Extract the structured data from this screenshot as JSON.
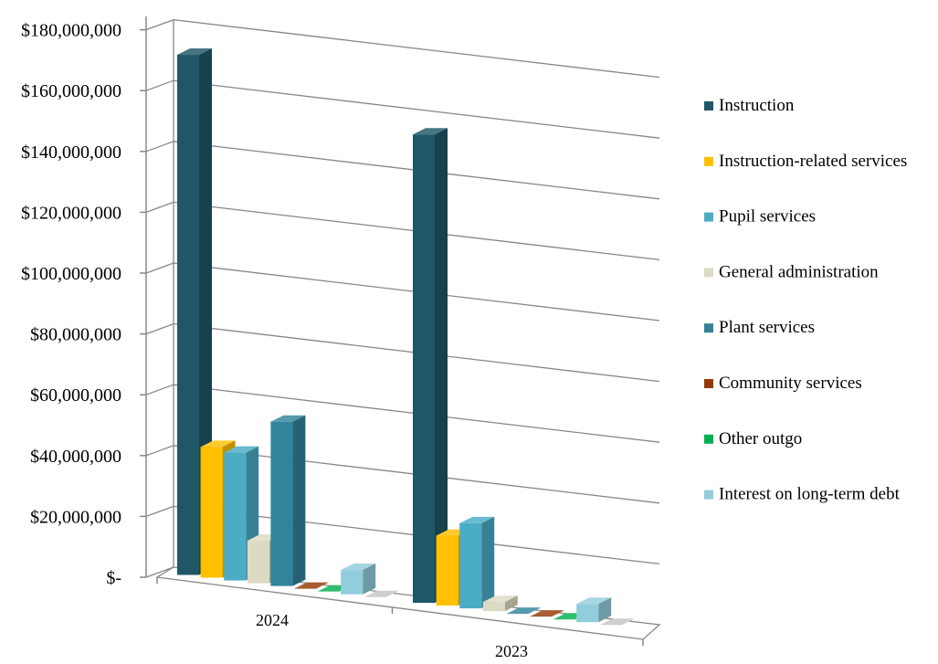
{
  "chart_data": {
    "type": "bar",
    "categories": [
      "2024",
      "2023"
    ],
    "series": [
      {
        "name": "Instruction",
        "values": [
          171000000,
          154000000
        ]
      },
      {
        "name": "Instruction-related services",
        "values": [
          43000000,
          23000000
        ]
      },
      {
        "name": "Pupil services",
        "values": [
          42000000,
          28000000
        ]
      },
      {
        "name": "General administration",
        "values": [
          14000000,
          3000000
        ]
      },
      {
        "name": "Plant services",
        "values": [
          54000000,
          0
        ]
      },
      {
        "name": "Community services",
        "values": [
          0,
          0
        ]
      },
      {
        "name": "Other outgo",
        "values": [
          0,
          0
        ]
      },
      {
        "name": "Interest on long-term debt",
        "values": [
          8000000,
          6000000
        ]
      },
      {
        "name": "",
        "values": [
          0,
          0
        ]
      }
    ],
    "colors": [
      "#1f5767",
      "#ffc000",
      "#4bacc6",
      "#dddac4",
      "#31849b",
      "#953905",
      "#00b050",
      "#92cddc",
      "#c4c4c4"
    ],
    "y_tick_values": [
      0,
      20000000,
      40000000,
      60000000,
      80000000,
      100000000,
      120000000,
      140000000,
      160000000,
      180000000
    ],
    "y_tick_labels": [
      "$-",
      "$20,000,000",
      "$40,000,000",
      "$60,000,000",
      "$80,000,000",
      "$100,000,000",
      "$120,000,000",
      "$140,000,000",
      "$160,000,000",
      "$180,000,000"
    ],
    "ylim": [
      0,
      180000000
    ],
    "grid": true,
    "legend_position": "right",
    "title": "",
    "xlabel": "",
    "ylabel": ""
  }
}
